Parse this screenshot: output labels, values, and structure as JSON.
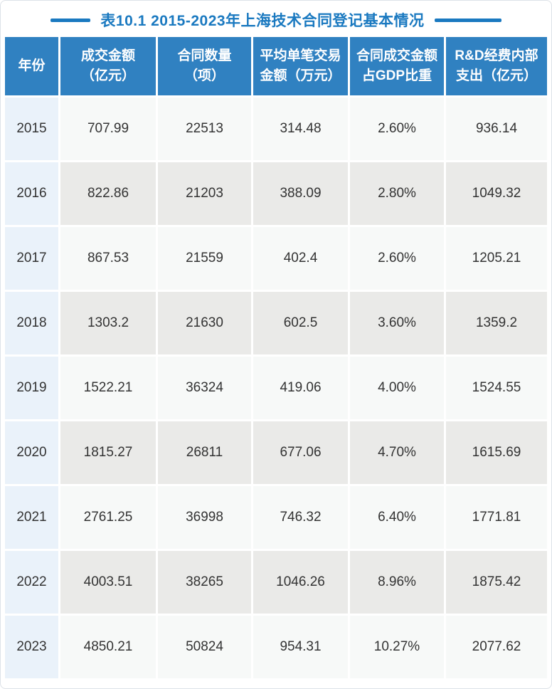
{
  "page": {
    "background": "#ffffff",
    "border_color": "#dde2e8"
  },
  "title": {
    "text": "表10.1 2015-2023年上海技术合同登记基本情况",
    "color": "#1a79c0",
    "line_color": "#1a79c0"
  },
  "table": {
    "colors": {
      "header_bg": "#3081c1",
      "header_text": "#ffffff",
      "year_col_bg": "#eaf2fa",
      "row_odd_bg": "#f7f9f8",
      "row_even_bg": "#eaeae8",
      "cell_text": "#333333"
    },
    "headers": [
      {
        "line1": "年份",
        "line2": ""
      },
      {
        "line1": "成交金额",
        "line2": "（亿元）"
      },
      {
        "line1": "合同数量",
        "line2": "（项）"
      },
      {
        "line1": "平均单笔交易",
        "line2": "金额（万元）"
      },
      {
        "line1": "合同成交金额",
        "line2": "占GDP比重"
      },
      {
        "line1": "R&D经费内部",
        "line2": "支出（亿元）"
      }
    ],
    "rows": [
      [
        "2015",
        "707.99",
        "22513",
        "314.48",
        "2.60%",
        "936.14"
      ],
      [
        "2016",
        "822.86",
        "21203",
        "388.09",
        "2.80%",
        "1049.32"
      ],
      [
        "2017",
        "867.53",
        "21559",
        "402.4",
        "2.60%",
        "1205.21"
      ],
      [
        "2018",
        "1303.2",
        "21630",
        "602.5",
        "3.60%",
        "1359.2"
      ],
      [
        "2019",
        "1522.21",
        "36324",
        "419.06",
        "4.00%",
        "1524.55"
      ],
      [
        "2020",
        "1815.27",
        "26811",
        "677.06",
        "4.70%",
        "1615.69"
      ],
      [
        "2021",
        "2761.25",
        "36998",
        "746.32",
        "6.40%",
        "1771.81"
      ],
      [
        "2022",
        "4003.51",
        "38265",
        "1046.26",
        "8.96%",
        "1875.42"
      ],
      [
        "2023",
        "4850.21",
        "50824",
        "954.31",
        "10.27%",
        "2077.62"
      ]
    ]
  },
  "chart_data": {
    "type": "table",
    "title": "表10.1 2015-2023年上海技术合同登记基本情况",
    "columns": [
      "年份",
      "成交金额（亿元）",
      "合同数量（项）",
      "平均单笔交易金额（万元）",
      "合同成交金额占GDP比重",
      "R&D经费内部支出（亿元）"
    ],
    "rows": [
      [
        2015,
        707.99,
        22513,
        314.48,
        "2.60%",
        936.14
      ],
      [
        2016,
        822.86,
        21203,
        388.09,
        "2.80%",
        1049.32
      ],
      [
        2017,
        867.53,
        21559,
        402.4,
        "2.60%",
        1205.21
      ],
      [
        2018,
        1303.2,
        21630,
        602.5,
        "3.60%",
        1359.2
      ],
      [
        2019,
        1522.21,
        36324,
        419.06,
        "4.00%",
        1524.55
      ],
      [
        2020,
        1815.27,
        26811,
        677.06,
        "4.70%",
        1615.69
      ],
      [
        2021,
        2761.25,
        36998,
        746.32,
        "6.40%",
        1771.81
      ],
      [
        2022,
        4003.51,
        38265,
        1046.26,
        "8.96%",
        1875.42
      ],
      [
        2023,
        4850.21,
        50824,
        954.31,
        "10.27%",
        2077.62
      ]
    ]
  }
}
